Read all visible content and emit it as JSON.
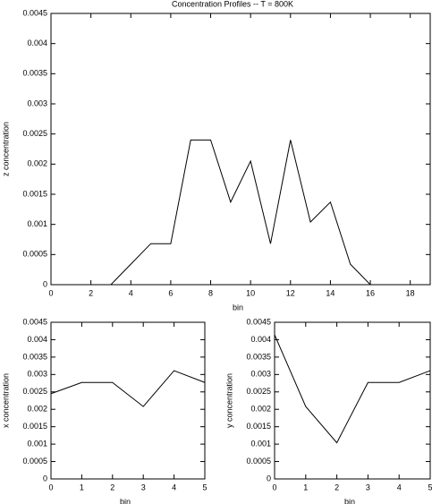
{
  "chart_data": [
    {
      "type": "line",
      "title": "Concentration Profiles -- T = 800K",
      "x_label": "bin",
      "y_label": "z concentration",
      "x": [
        0,
        1,
        2,
        3,
        4,
        5,
        6,
        7,
        8,
        9,
        10,
        11,
        12,
        13,
        14,
        15,
        16,
        17,
        18
      ],
      "series": [
        {
          "color": "#000000",
          "values": [
            0,
            0,
            0,
            0,
            0.00034,
            0.00068,
            0.00068,
            0.0024,
            0.0024,
            0.00137,
            0.00205,
            0.00068,
            0.0024,
            0.00104,
            0.00137,
            0.00034,
            0,
            0,
            0
          ]
        }
      ],
      "xlim": [
        0,
        19
      ],
      "xticks": [
        0,
        2,
        4,
        6,
        8,
        10,
        12,
        14,
        16,
        18
      ],
      "ylim": [
        0,
        0.0045
      ],
      "yticks": [
        0,
        0.0005,
        0.001,
        0.0015,
        0.002,
        0.0025,
        0.003,
        0.0035,
        0.004,
        0.0045
      ]
    },
    {
      "type": "line",
      "x_label": "bin",
      "y_label": "x concentration",
      "x": [
        0,
        1,
        2,
        3,
        4,
        5
      ],
      "series": [
        {
          "color": "#000000",
          "values": [
            0.00245,
            0.00277,
            0.00277,
            0.00208,
            0.00311,
            0.00277
          ]
        }
      ],
      "xlim": [
        0,
        5
      ],
      "xticks": [
        0,
        1,
        2,
        3,
        4,
        5
      ],
      "ylim": [
        0,
        0.0045
      ],
      "yticks": [
        0,
        0.0005,
        0.001,
        0.0015,
        0.002,
        0.0025,
        0.003,
        0.0035,
        0.004,
        0.0045
      ]
    },
    {
      "type": "line",
      "x_label": "bin",
      "y_label": "y concentration",
      "x": [
        0,
        1,
        2,
        3,
        4,
        5
      ],
      "series": [
        {
          "color": "#000000",
          "values": [
            0.00414,
            0.00208,
            0.00104,
            0.00277,
            0.00277,
            0.00311
          ]
        }
      ],
      "xlim": [
        0,
        5
      ],
      "xticks": [
        0,
        1,
        2,
        3,
        4,
        5
      ],
      "ylim": [
        0,
        0.0045
      ],
      "yticks": [
        0,
        0.0005,
        0.001,
        0.0015,
        0.002,
        0.0025,
        0.003,
        0.0035,
        0.004,
        0.0045
      ]
    }
  ]
}
